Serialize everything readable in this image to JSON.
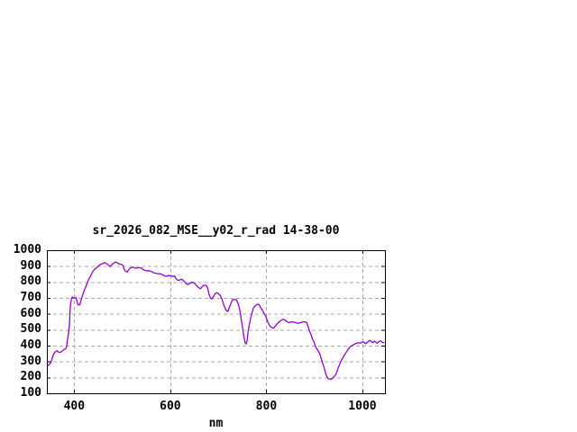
{
  "chart_data": {
    "type": "line",
    "title": "sr_2026_082_MSE__y02_r_rad 14-38-00",
    "xlabel": "nm",
    "ylabel": "",
    "xlim": [
      343,
      1047
    ],
    "ylim": [
      100,
      1000
    ],
    "x_ticks": [
      400,
      600,
      800,
      1000
    ],
    "y_ticks": [
      100,
      200,
      300,
      400,
      500,
      600,
      700,
      800,
      900,
      1000
    ],
    "grid": "dashed",
    "legend_position": "none",
    "colors": {
      "curve": "#9400d3",
      "grid": "#a8a8a8",
      "axis": "#000000",
      "background": "#ffffff"
    },
    "series": [
      {
        "x": [
          344,
          347,
          350,
          352,
          355,
          358,
          361,
          364,
          367,
          370,
          373,
          376,
          379,
          382,
          384,
          386,
          388,
          390,
          391,
          392,
          394,
          396,
          398,
          400,
          403,
          405,
          407,
          410,
          412,
          414,
          417,
          420,
          423,
          426,
          429,
          432,
          435,
          438,
          441,
          444,
          447,
          450,
          453,
          456,
          459,
          462,
          464,
          467,
          470,
          472,
          474,
          477,
          480,
          483,
          486,
          489,
          492,
          495,
          498,
          501,
          504,
          507,
          510,
          513,
          516,
          519,
          522,
          525,
          528,
          531,
          534,
          537,
          540,
          543,
          546,
          549,
          552,
          555,
          558,
          561,
          564,
          567,
          570,
          573,
          576,
          579,
          582,
          585,
          588,
          591,
          594,
          597,
          600,
          603,
          606,
          609,
          612,
          615,
          618,
          621,
          624,
          627,
          630,
          633,
          636,
          639,
          642,
          645,
          648,
          651,
          654,
          657,
          660,
          663,
          666,
          669,
          672,
          675,
          678,
          681,
          684,
          687,
          690,
          693,
          696,
          699,
          702,
          705,
          708,
          711,
          714,
          717,
          720,
          723,
          726,
          729,
          732,
          735,
          738,
          741,
          744,
          747,
          750,
          753,
          756,
          758,
          760,
          762,
          764,
          767,
          770,
          773,
          776,
          779,
          782,
          785,
          788,
          791,
          794,
          797,
          800,
          803,
          806,
          809,
          812,
          815,
          818,
          821,
          824,
          827,
          830,
          833,
          836,
          839,
          842,
          845,
          848,
          851,
          854,
          857,
          860,
          863,
          866,
          869,
          872,
          875,
          878,
          881,
          884,
          887,
          890,
          893,
          896,
          899,
          902,
          905,
          908,
          911,
          914,
          917,
          920,
          923,
          926,
          929,
          932,
          935,
          938,
          941,
          944,
          947,
          950,
          953,
          956,
          959,
          962,
          965,
          968,
          971,
          974,
          977,
          980,
          983,
          986,
          989,
          992,
          995,
          998,
          1001,
          1004,
          1007,
          1010,
          1013,
          1016,
          1019,
          1022,
          1025,
          1028,
          1031,
          1034,
          1037,
          1040,
          1043,
          1046
        ],
        "y": [
          272,
          280,
          287,
          300,
          330,
          352,
          362,
          367,
          360,
          356,
          362,
          368,
          376,
          380,
          392,
          440,
          480,
          530,
          600,
          650,
          695,
          705,
          697,
          700,
          702,
          690,
          662,
          655,
          660,
          685,
          712,
          740,
          762,
          785,
          810,
          826,
          843,
          862,
          875,
          885,
          892,
          900,
          908,
          912,
          915,
          920,
          922,
          915,
          910,
          905,
          897,
          905,
          915,
          920,
          926,
          922,
          915,
          913,
          912,
          905,
          880,
          866,
          864,
          875,
          886,
          892,
          893,
          890,
          886,
          888,
          890,
          889,
          888,
          880,
          874,
          872,
          870,
          871,
          870,
          866,
          860,
          856,
          855,
          853,
          852,
          851,
          850,
          843,
          837,
          836,
          838,
          840,
          840,
          838,
          834,
          838,
          820,
          812,
          810,
          815,
          818,
          810,
          800,
          790,
          783,
          788,
          795,
          798,
          797,
          790,
          780,
          770,
          762,
          758,
          770,
          778,
          780,
          778,
          760,
          720,
          698,
          694,
          710,
          725,
          732,
          730,
          722,
          710,
          690,
          660,
          635,
          620,
          615,
          640,
          665,
          685,
          690,
          690,
          688,
          665,
          635,
          580,
          520,
          460,
          415,
          412,
          430,
          490,
          525,
          570,
          605,
          635,
          648,
          655,
          660,
          658,
          640,
          628,
          610,
          595,
          575,
          550,
          530,
          518,
          512,
          510,
          520,
          532,
          542,
          550,
          558,
          563,
          565,
          560,
          552,
          547,
          545,
          548,
          550,
          548,
          545,
          542,
          540,
          543,
          545,
          548,
          550,
          548,
          545,
          520,
          490,
          470,
          440,
          425,
          395,
          380,
          365,
          350,
          320,
          290,
          265,
          230,
          205,
          192,
          190,
          188,
          195,
          205,
          215,
          235,
          262,
          284,
          305,
          322,
          338,
          350,
          365,
          380,
          390,
          398,
          402,
          408,
          412,
          416,
          418,
          415,
          420,
          424,
          418,
          412,
          420,
          428,
          432,
          425,
          418,
          428,
          422,
          415,
          425,
          430,
          425,
          418,
          420
        ]
      }
    ]
  }
}
